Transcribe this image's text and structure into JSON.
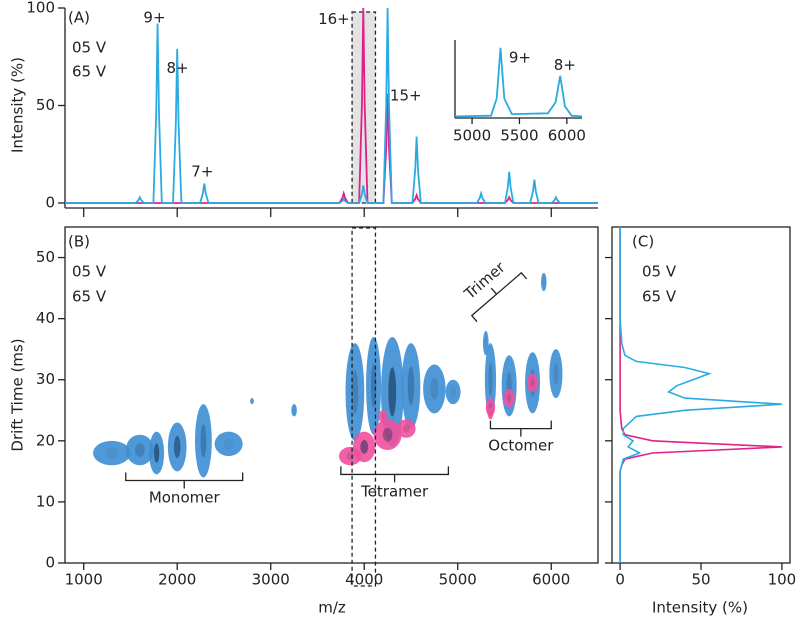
{
  "chart_data": [
    {
      "type": "line",
      "label": "(A)",
      "ylabel": "Intensity (%)",
      "xlim": [
        800,
        6500
      ],
      "ylim": [
        0,
        100
      ],
      "yticks": [
        0,
        50,
        100
      ],
      "xticks": [
        1000,
        2000,
        3000,
        4000,
        5000,
        6000
      ],
      "highlight": [
        3870,
        4120
      ],
      "series": [
        {
          "name": "05 V",
          "color": "#e0218a",
          "x": [
            800,
            3735,
            3765,
            3780,
            3795,
            3825,
            3945,
            3975,
            3990,
            4005,
            4035,
            4205,
            4235,
            4250,
            4265,
            4295,
            4515,
            4545,
            4560,
            4575,
            4605,
            5505,
            5535,
            5550,
            5565,
            5595,
            6500
          ],
          "values": [
            0,
            0,
            2.5,
            5,
            2.5,
            0,
            0,
            50,
            100,
            50,
            0,
            0,
            28,
            56,
            28,
            0,
            0,
            2,
            4,
            2,
            0,
            0,
            1.5,
            3,
            1.5,
            0,
            0
          ]
        },
        {
          "name": "65 V",
          "color": "#29abe2",
          "x": [
            800,
            1555,
            1585,
            1600,
            1615,
            1645,
            1745,
            1775,
            1790,
            1805,
            1835,
            1955,
            1985,
            2000,
            2015,
            2045,
            2245,
            2275,
            2290,
            2305,
            2335,
            3735,
            3765,
            3780,
            3795,
            3825,
            3945,
            3975,
            3990,
            4005,
            4035,
            4205,
            4235,
            4250,
            4265,
            4295,
            4515,
            4545,
            4560,
            4575,
            4605,
            5205,
            5235,
            5250,
            5265,
            5295,
            5505,
            5535,
            5550,
            5565,
            5595,
            5775,
            5805,
            5820,
            5835,
            5865,
            6005,
            6035,
            6050,
            6065,
            6095,
            6500
          ],
          "values": [
            0,
            0,
            1.5,
            3,
            1.5,
            0,
            0,
            46,
            92,
            46,
            0,
            0,
            40,
            79,
            40,
            0,
            0,
            5,
            10,
            5,
            0,
            0,
            1,
            2,
            1,
            0,
            0,
            4.5,
            9,
            4.5,
            0,
            0,
            50,
            100,
            50,
            0,
            0,
            17,
            34,
            17,
            0,
            0,
            2.5,
            5,
            2.5,
            0,
            0,
            8,
            16,
            8,
            0,
            0,
            6,
            12,
            6,
            0,
            0,
            1.5,
            3,
            1.5,
            0,
            0
          ]
        }
      ],
      "annotations": [
        {
          "text": "9+",
          "x": 1757,
          "y": 95,
          "color": "#29abe2"
        },
        {
          "text": "8+",
          "x": 2004,
          "y": 69,
          "color": "#29abe2"
        },
        {
          "text": "7+",
          "x": 2269,
          "y": 16,
          "color": "#29abe2"
        },
        {
          "text": "16+",
          "x": 3676,
          "y": 94,
          "color": "#e0218a"
        },
        {
          "text": "15+",
          "x": 4444,
          "y": 55,
          "color": "#e0218a"
        }
      ],
      "inset": {
        "xlim": [
          4820,
          6160
        ],
        "ylim": [
          0,
          100
        ],
        "xticks": [
          5000,
          5500,
          6000
        ],
        "color": "#29abe2",
        "x": [
          4820,
          5200,
          5260,
          5300,
          5340,
          5420,
          5800,
          5880,
          5930,
          5980,
          6050,
          6160
        ],
        "values": [
          2,
          3,
          25,
          90,
          25,
          5,
          6,
          20,
          54,
          15,
          3,
          2
        ],
        "annotations": [
          {
            "text": "9+",
            "x": 5505,
            "y": 77
          },
          {
            "text": "8+",
            "x": 5979,
            "y": 67
          }
        ]
      }
    },
    {
      "type": "heatmap",
      "label": "(B)",
      "xlabel": "m/z",
      "ylabel": "Drift Time (ms)",
      "xlim": [
        800,
        6500
      ],
      "ylim": [
        0,
        55
      ],
      "xticks": [
        1000,
        2000,
        3000,
        4000,
        5000,
        6000
      ],
      "yticks": [
        0,
        10,
        20,
        30,
        40,
        50
      ],
      "highlight": [
        3870,
        4120
      ],
      "series": [
        {
          "name": "05 V",
          "color": "#f0509f",
          "x": [
            3850,
            4000,
            4250,
            4450,
            4200,
            5350,
            5550,
            5800,
            5350
          ],
          "values": [
            17.5,
            19,
            21,
            22,
            24,
            25.5,
            27,
            29.5,
            24.5
          ],
          "width": [
            120,
            120,
            150,
            100,
            50,
            50,
            60,
            60,
            30
          ],
          "height": [
            1.5,
            2.5,
            2.5,
            1.5,
            1,
            1.5,
            1.5,
            1.5,
            1
          ],
          "intensity": [
            0.2,
            0.7,
            0.5,
            0.2,
            0.1,
            0.2,
            0.2,
            0.2,
            0.1
          ]
        },
        {
          "name": "65 V",
          "color": "#3d8ed4",
          "x": [
            1300,
            1600,
            1780,
            2000,
            2280,
            2550,
            3900,
            4100,
            4300,
            4500,
            4750,
            4950,
            5350,
            5550,
            5800,
            6050,
            5300,
            5920,
            3250,
            2800
          ],
          "values": [
            18,
            18.5,
            18,
            19,
            20,
            19.5,
            28,
            29,
            28,
            29,
            28.5,
            28,
            30,
            29,
            29.5,
            31,
            36,
            46,
            25,
            26.5
          ],
          "width": [
            200,
            150,
            80,
            100,
            90,
            150,
            100,
            80,
            120,
            100,
            120,
            80,
            60,
            80,
            80,
            70,
            30,
            30,
            30,
            20
          ],
          "height": [
            2,
            2.5,
            3.5,
            4,
            6,
            2,
            8,
            8,
            9,
            7,
            4,
            2,
            6,
            5,
            5,
            4,
            2,
            1.5,
            1,
            0.5
          ],
          "intensity": [
            0.1,
            0.3,
            0.8,
            0.7,
            0.4,
            0.1,
            0.3,
            0.4,
            0.8,
            0.4,
            0.2,
            0.1,
            0.3,
            0.3,
            0.3,
            0.2,
            0.1,
            0.1,
            0.1,
            0.1
          ]
        }
      ],
      "brackets": [
        {
          "text": "Monomer",
          "x1": 1450,
          "y1": 13.5,
          "x2": 2700,
          "y2": 13.5
        },
        {
          "text": "Tetramer",
          "x1": 3750,
          "y1": 14.5,
          "x2": 4900,
          "y2": 14.5
        },
        {
          "text": "Octomer",
          "x1": 5350,
          "y1": 22,
          "x2": 6000,
          "y2": 22
        },
        {
          "text": "Trimer",
          "x1": 5680,
          "y1": 47.5,
          "x2": 5150,
          "y2": 40.5
        }
      ]
    },
    {
      "type": "line",
      "orientation": "vertical",
      "label": "(C)",
      "xlabel": "Intensity (%)",
      "xlim": [
        -5,
        105
      ],
      "xticks": [
        0,
        50,
        100
      ],
      "ylim": [
        0,
        55
      ],
      "yticks": [
        0,
        10,
        20,
        30,
        40,
        50
      ],
      "series": [
        {
          "name": "05 V",
          "color": "#e0218a",
          "y": [
            0,
            15,
            16,
            17,
            18,
            18.5,
            19,
            19.5,
            20,
            21,
            22,
            25,
            55
          ],
          "values": [
            0,
            0,
            1,
            3,
            20,
            60,
            100,
            60,
            20,
            3,
            1,
            0,
            0
          ]
        },
        {
          "name": "65 V",
          "color": "#29abe2",
          "y": [
            0,
            15,
            17,
            18,
            19,
            20,
            21,
            22,
            24,
            25,
            26,
            27,
            28,
            29,
            30,
            31,
            32,
            33,
            34,
            36,
            40,
            55
          ],
          "values": [
            0,
            0,
            2,
            12,
            5,
            8,
            2,
            2,
            10,
            40,
            100,
            40,
            30,
            35,
            45,
            55,
            40,
            10,
            3,
            1,
            0,
            0
          ]
        }
      ]
    }
  ]
}
